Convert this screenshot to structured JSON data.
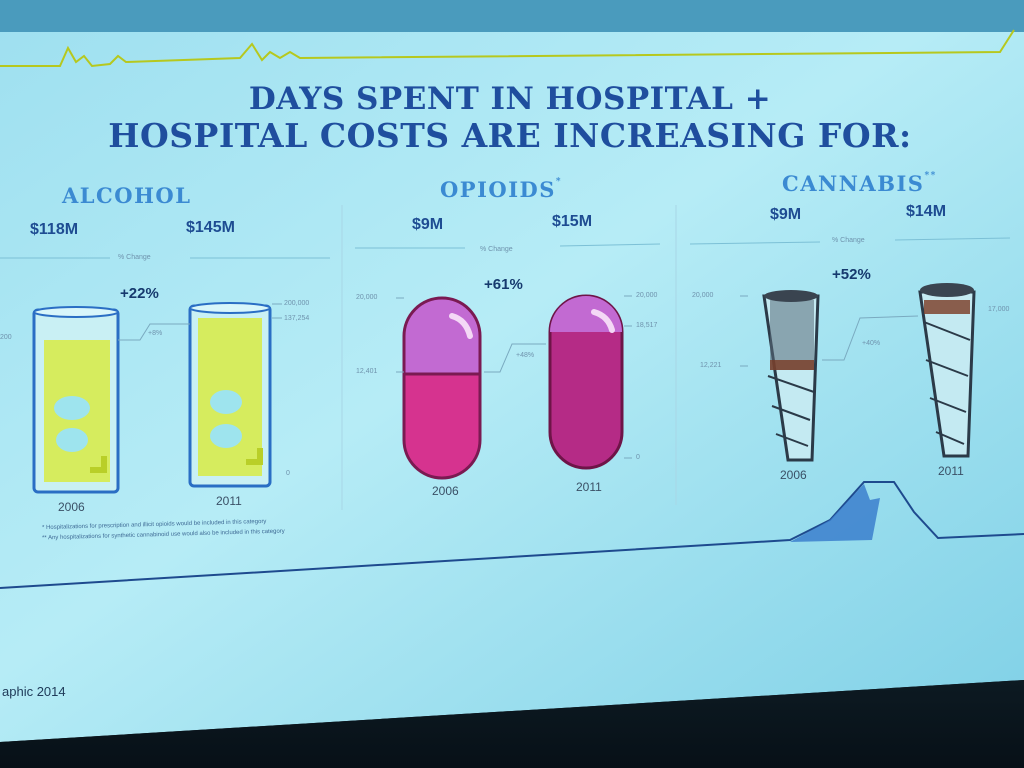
{
  "slide": {
    "title_line1": "DAYS SPENT IN HOSPITAL +",
    "title_line2": "HOSPITAL COSTS ARE INCREASING FOR:",
    "source": "aphic 2014",
    "footnotes": [
      "* Hospitalizations for prescription and illicit opioids would be included in this category",
      "** Any hospitalizations for synthetic cannabinoid use would also be included in this category"
    ]
  },
  "panels": [
    {
      "category": "ALCOHOL",
      "marker": "",
      "cost_2006": "$118M",
      "cost_2011": "$145M",
      "change_label": "% Change",
      "change": "+22%",
      "small_change": "+8%",
      "axis_left_top": "",
      "axis_left_mid": "200",
      "axis_right_top": "200,000",
      "axis_right_mid": "137,254",
      "axis_right_bottom": "0",
      "year_a": "2006",
      "year_b": "2011",
      "icon": "glass-icon"
    },
    {
      "category": "OPIOIDS",
      "marker": "*",
      "cost_2006": "$9M",
      "cost_2011": "$15M",
      "change_label": "% Change",
      "change": "+61%",
      "small_change": "+48%",
      "axis_left_top": "20,000",
      "axis_left_mid": "12,401",
      "axis_right_top": "20,000",
      "axis_right_mid": "18,517",
      "axis_right_bottom": "0",
      "year_a": "2006",
      "year_b": "2011",
      "icon": "pill-icon"
    },
    {
      "category": "CANNABIS",
      "marker": "**",
      "cost_2006": "$9M",
      "cost_2011": "$14M",
      "change_label": "% Change",
      "change": "+52%",
      "small_change": "+40%",
      "axis_left_top": "20,000",
      "axis_left_mid": "12,221",
      "axis_right_top": "17,000",
      "axis_right_mid": "",
      "axis_right_bottom": "",
      "year_a": "2006",
      "year_b": "2011",
      "icon": "joint-icon"
    }
  ],
  "colors": {
    "title": "#1f4e9e",
    "category": "#3b8ad2",
    "glass_liquid": "#d9ee5a",
    "pill_top": "#c26ad2",
    "pill_bottom": "#d6338f",
    "pill_dark": "#b52b86"
  }
}
